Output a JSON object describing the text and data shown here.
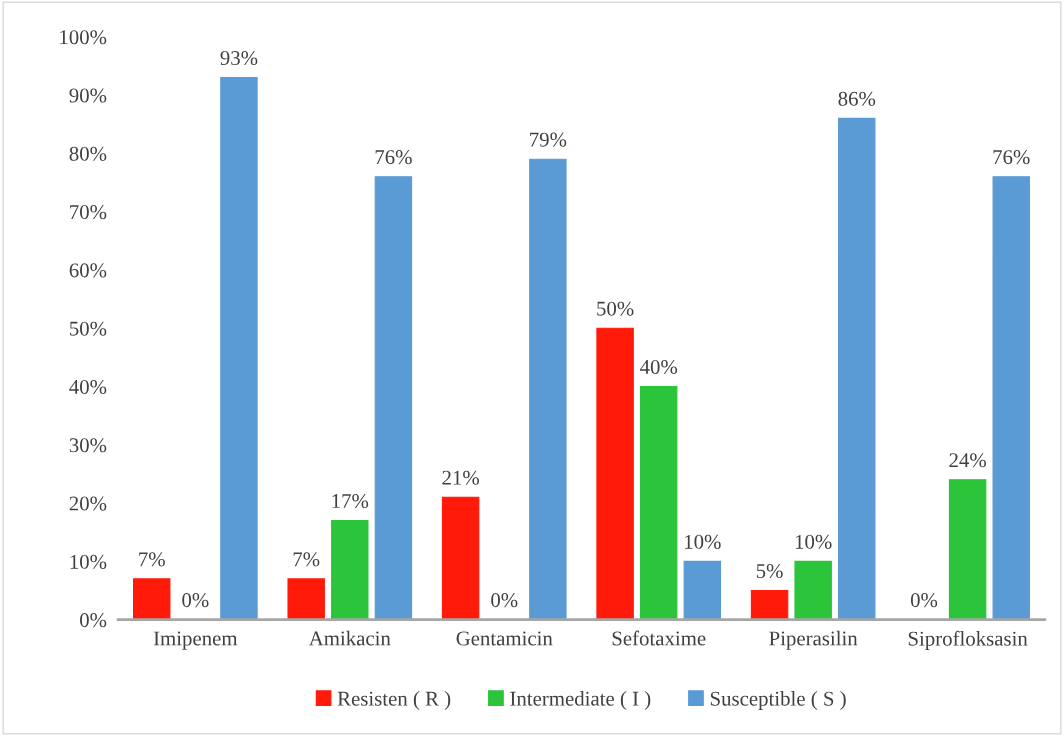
{
  "chart_data": {
    "type": "bar",
    "categories": [
      "Imipenem",
      "Amikacin",
      "Gentamicin",
      "Sefotaxime",
      "Piperasilin",
      "Siprofloksasin"
    ],
    "series": [
      {
        "name": "Resisten ( R )",
        "color": "#ff1a0a",
        "values": [
          7,
          7,
          21,
          50,
          5,
          0
        ],
        "value_labels": [
          "7%",
          "7%",
          "21%",
          "50%",
          "5%",
          "0%"
        ]
      },
      {
        "name": "Intermediate ( I )",
        "color": "#2cc43a",
        "values": [
          0,
          17,
          0,
          40,
          10,
          24
        ],
        "value_labels": [
          "0%",
          "17%",
          "0%",
          "40%",
          "10%",
          "24%"
        ]
      },
      {
        "name": "Susceptible ( S )",
        "color": "#5b9bd5",
        "values": [
          93,
          76,
          79,
          10,
          86,
          76
        ],
        "value_labels": [
          "93%",
          "76%",
          "79%",
          "10%",
          "86%",
          "76%"
        ]
      }
    ],
    "ylim": [
      0,
      100
    ],
    "yticks": [
      {
        "value": 0,
        "label": "0%"
      },
      {
        "value": 10,
        "label": "10%"
      },
      {
        "value": 20,
        "label": "20%"
      },
      {
        "value": 30,
        "label": "30%"
      },
      {
        "value": 40,
        "label": "40%"
      },
      {
        "value": 50,
        "label": "50%"
      },
      {
        "value": 60,
        "label": "60%"
      },
      {
        "value": 70,
        "label": "70%"
      },
      {
        "value": 80,
        "label": "80%"
      },
      {
        "value": 90,
        "label": "90%"
      },
      {
        "value": 100,
        "label": "100%"
      }
    ],
    "grid": false,
    "legend": "bottom"
  }
}
